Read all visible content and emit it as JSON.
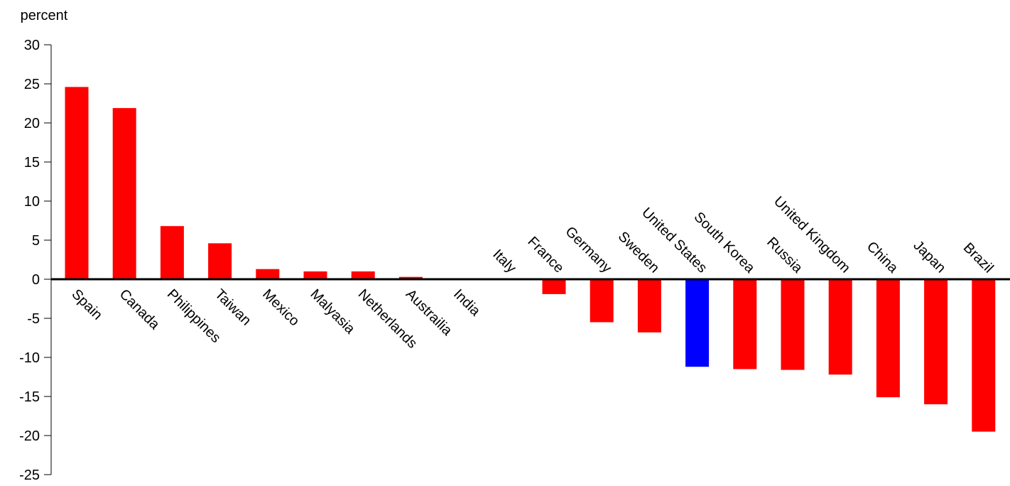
{
  "chart_data": {
    "type": "bar",
    "y_label": "percent",
    "categories": [
      "Spain",
      "Canada",
      "Philippines",
      "Taiwan",
      "Mexico",
      "Malyasia",
      "Netherlands",
      "Austrailia",
      "India",
      "Italy",
      "France",
      "Germany",
      "Sweden",
      "United States",
      "South Korea",
      "Russia",
      "United Kingdom",
      "China",
      "Japan",
      "Brazil"
    ],
    "values": [
      24.6,
      21.9,
      6.8,
      4.6,
      1.3,
      1.0,
      1.0,
      0.3,
      0,
      -0.1,
      -1.9,
      -5.5,
      -6.8,
      -11.2,
      -11.5,
      -11.6,
      -12.2,
      -15.1,
      -16.0,
      -19.5
    ],
    "colors": [
      "#ff0000",
      "#ff0000",
      "#ff0000",
      "#ff0000",
      "#ff0000",
      "#ff0000",
      "#ff0000",
      "#ff0000",
      "#ff0000",
      "#ff0000",
      "#ff0000",
      "#ff0000",
      "#ff0000",
      "#0000ff",
      "#ff0000",
      "#ff0000",
      "#ff0000",
      "#ff0000",
      "#ff0000",
      "#ff0000"
    ],
    "ylim": [
      -25,
      30
    ],
    "yticks": [
      -25,
      -20,
      -15,
      -10,
      -5,
      0,
      5,
      10,
      15,
      20,
      25,
      30
    ]
  }
}
